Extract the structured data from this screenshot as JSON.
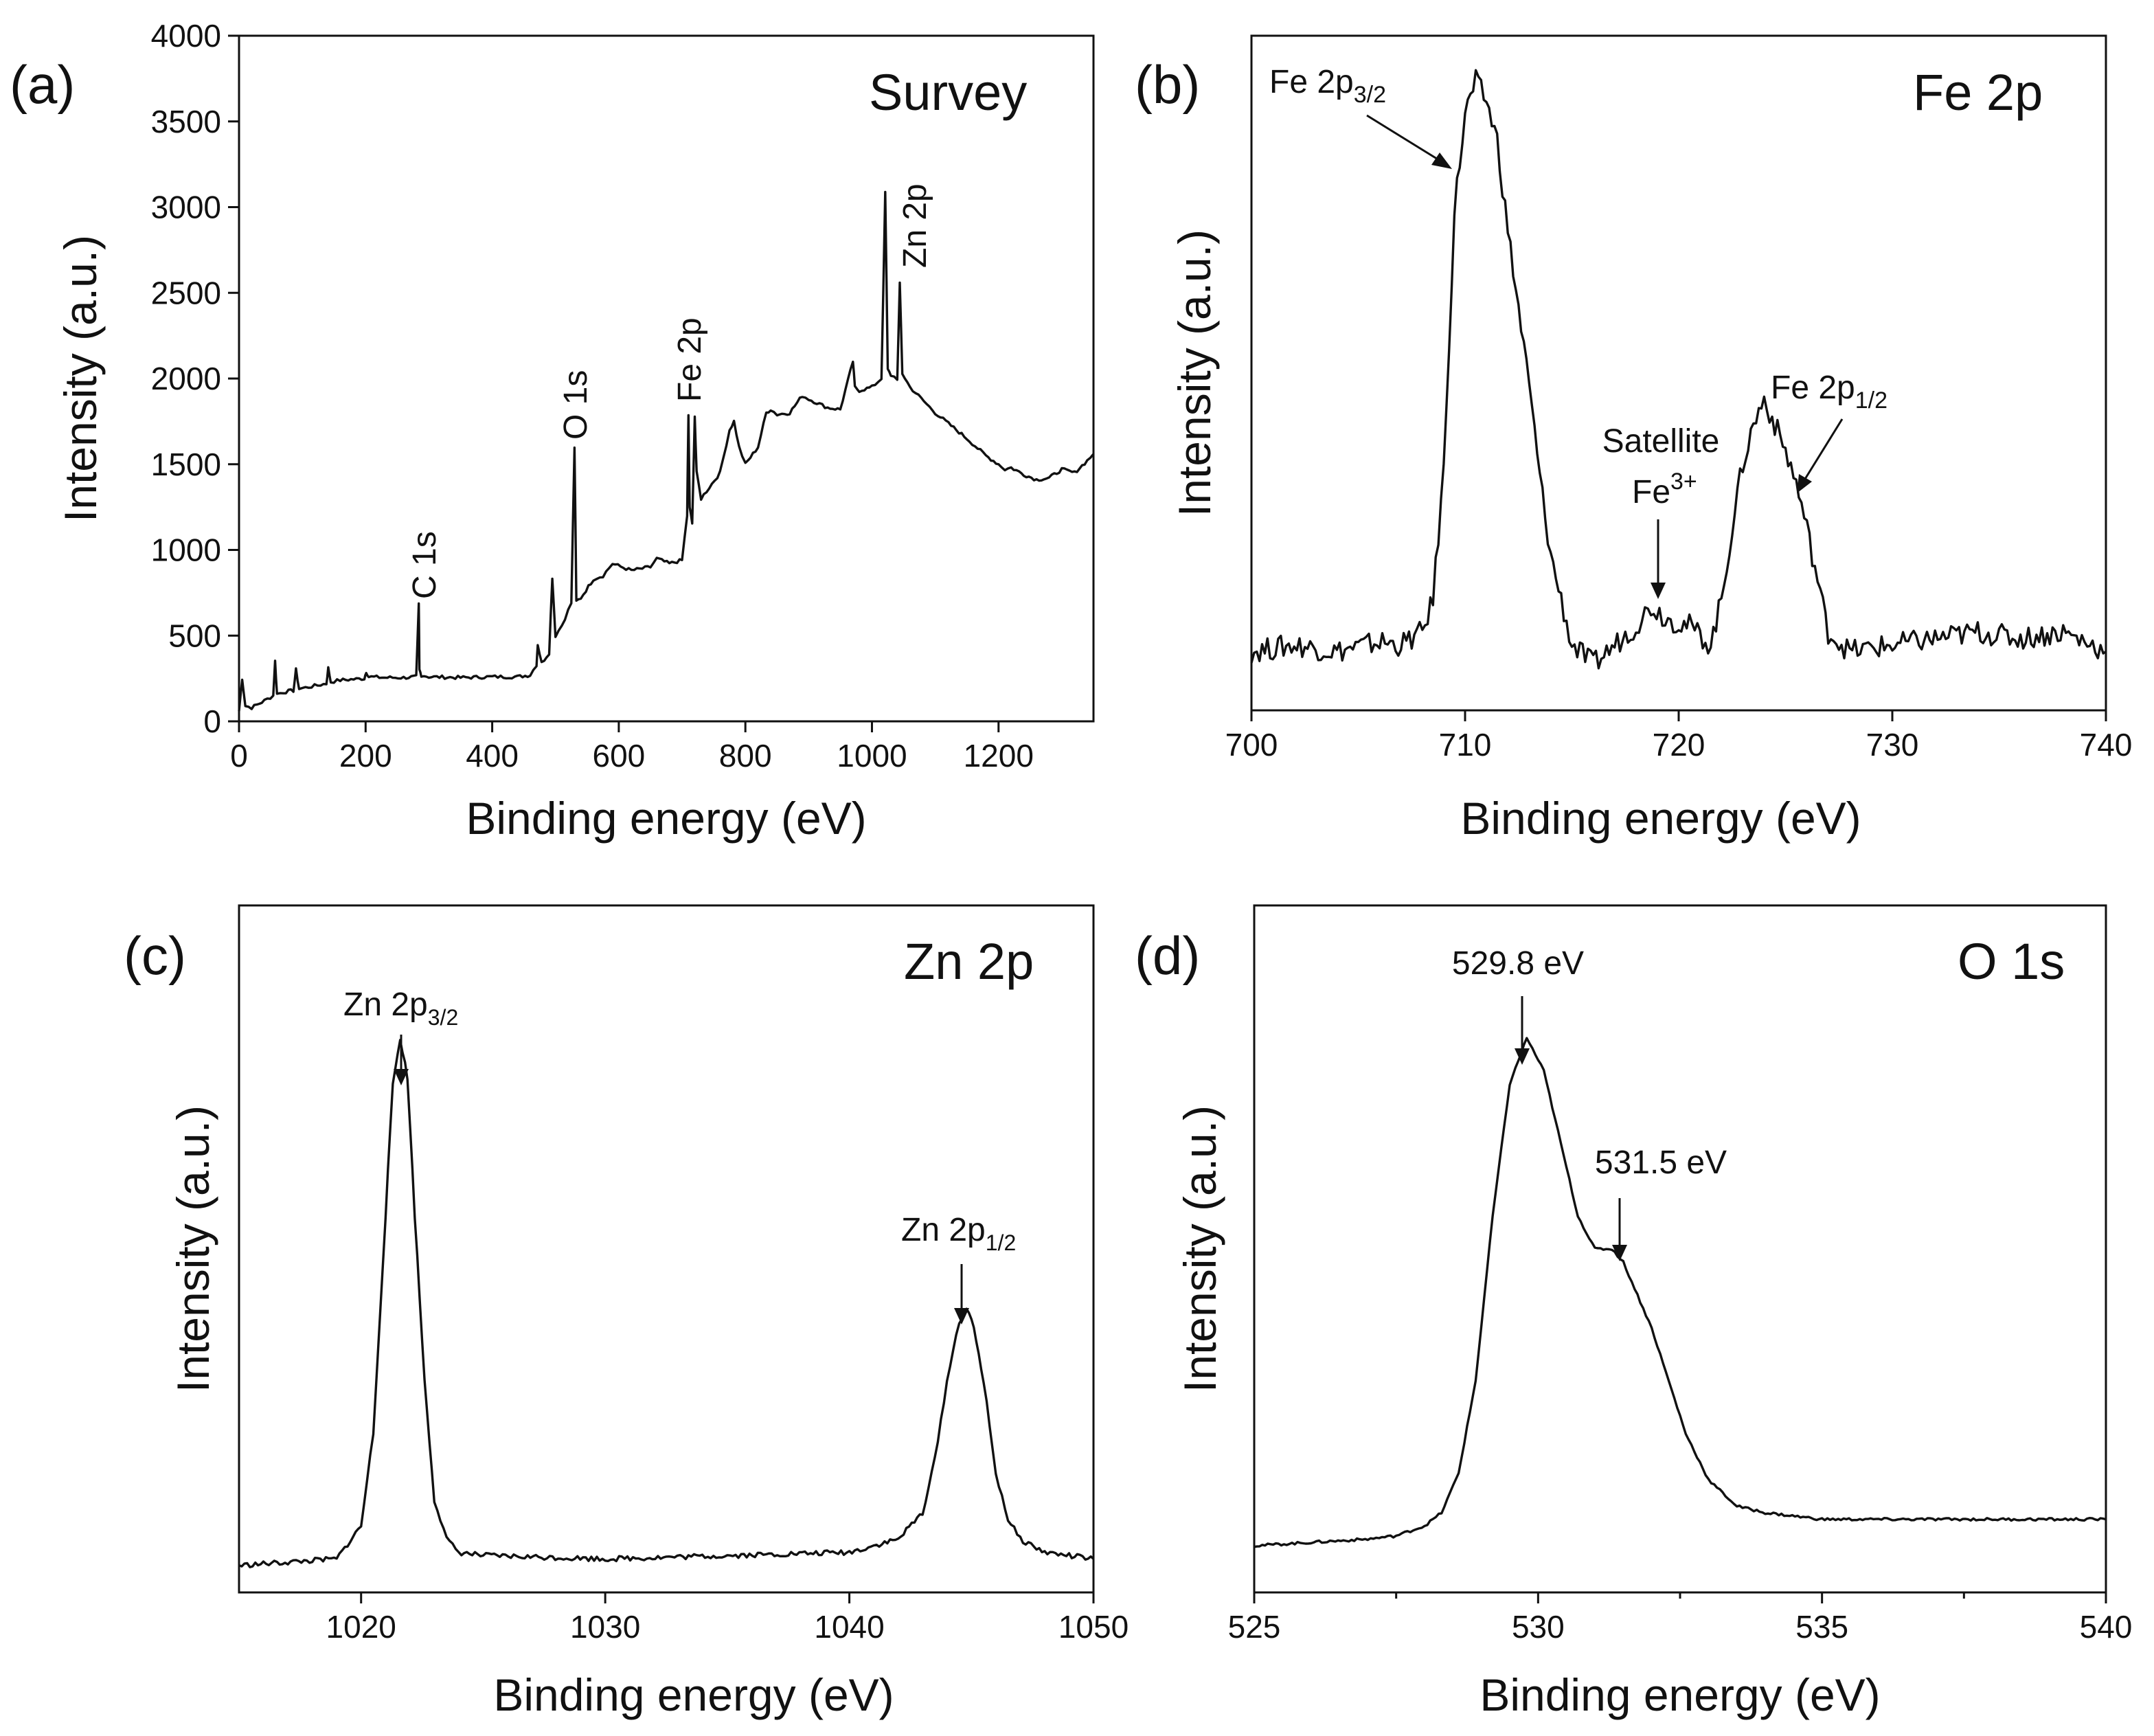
{
  "chart_data": [
    {
      "id": "a",
      "type": "line",
      "panel_label": "(a)",
      "title": "Survey",
      "xlabel": "Binding energy (eV)",
      "ylabel": "Intensity (a.u.)",
      "xlim": [
        0,
        1350
      ],
      "ylim": [
        0,
        4000
      ],
      "x_ticks": [
        0,
        200,
        400,
        600,
        800,
        1000,
        1200
      ],
      "x_tick_labels": [
        "0",
        "200",
        "400",
        "600",
        "800",
        "1000",
        "1200"
      ],
      "y_ticks": [
        0,
        500,
        1000,
        1500,
        2000,
        2500,
        3000,
        3500,
        4000
      ],
      "y_tick_labels": [
        "0",
        "500",
        "1000",
        "1500",
        "2000",
        "2500",
        "3000",
        "3500",
        "4000"
      ],
      "series": [
        {
          "name": "Survey spectrum",
          "x": [
            0,
            5,
            10,
            20,
            40,
            54,
            57,
            60,
            70,
            86,
            90,
            95,
            110,
            138,
            141,
            145,
            160,
            198,
            201,
            205,
            230,
            260,
            280,
            284,
            285,
            288,
            300,
            350,
            400,
            440,
            460,
            470,
            472,
            478,
            490,
            495,
            500,
            510,
            525,
            530,
            533,
            540,
            560,
            575,
            590,
            620,
            650,
            660,
            680,
            700,
            708,
            710,
            712,
            716,
            720,
            723,
            730,
            760,
            775,
            782,
            790,
            800,
            820,
            833,
            840,
            850,
            870,
            890,
            900,
            930,
            950,
            970,
            973,
            980,
            1000,
            1015,
            1021,
            1025,
            1030,
            1040,
            1044,
            1048,
            1060,
            1100,
            1150,
            1180,
            1200,
            1210,
            1220,
            1240,
            1260,
            1280,
            1300,
            1320,
            1340,
            1350
          ],
          "y": [
            60,
            250,
            90,
            80,
            120,
            150,
            350,
            160,
            170,
            180,
            300,
            190,
            200,
            220,
            310,
            230,
            240,
            250,
            290,
            260,
            255,
            255,
            260,
            680,
            300,
            270,
            260,
            255,
            260,
            260,
            270,
            330,
            450,
            340,
            400,
            840,
            500,
            560,
            690,
            1600,
            700,
            720,
            830,
            850,
            920,
            880,
            900,
            950,
            920,
            940,
            1200,
            1780,
            1250,
            1150,
            1780,
            1450,
            1300,
            1450,
            1700,
            1750,
            1600,
            1500,
            1600,
            1800,
            1820,
            1790,
            1800,
            1900,
            1880,
            1830,
            1820,
            2100,
            1950,
            1930,
            1950,
            2000,
            3080,
            2050,
            2020,
            2000,
            2550,
            2030,
            1950,
            1800,
            1650,
            1550,
            1500,
            1470,
            1480,
            1440,
            1410,
            1420,
            1470,
            1450,
            1520,
            1560
          ]
        }
      ],
      "annotations": [
        {
          "text": "C 1s",
          "x": 285
        },
        {
          "text": "O 1s",
          "x": 531
        },
        {
          "text": "Fe 2p",
          "x": 711
        },
        {
          "text": "Zn 2p",
          "x": 1044
        }
      ]
    },
    {
      "id": "b",
      "type": "line",
      "panel_label": "(b)",
      "title": "Fe 2p",
      "xlabel": "Binding energy (eV)",
      "ylabel": "Intensity (a.u.)",
      "xlim": [
        700,
        740
      ],
      "ylim": [
        0,
        1
      ],
      "x_ticks": [
        700,
        710,
        720,
        730,
        740
      ],
      "x_tick_labels": [
        "700",
        "710",
        "720",
        "730",
        "740"
      ],
      "y_ticks": [],
      "series": [
        {
          "name": "Fe 2p spectrum",
          "x": [
            700,
            702,
            704,
            706,
            707,
            708,
            708.5,
            709,
            709.5,
            710,
            710.5,
            711,
            711.5,
            712,
            712.5,
            713,
            713.5,
            714,
            715,
            716,
            717,
            718,
            718.7,
            719.5,
            720.5,
            721.5,
            722,
            722.5,
            723,
            723.5,
            724,
            724.5,
            725,
            725.5,
            726,
            726.5,
            727,
            728,
            730,
            732,
            734,
            736,
            738,
            740
          ],
          "y": [
            0.07,
            0.08,
            0.07,
            0.085,
            0.08,
            0.1,
            0.15,
            0.35,
            0.75,
            0.9,
            0.95,
            0.92,
            0.86,
            0.72,
            0.6,
            0.48,
            0.34,
            0.22,
            0.08,
            0.05,
            0.08,
            0.11,
            0.14,
            0.12,
            0.11,
            0.08,
            0.15,
            0.26,
            0.36,
            0.42,
            0.46,
            0.42,
            0.38,
            0.33,
            0.26,
            0.18,
            0.1,
            0.07,
            0.08,
            0.09,
            0.1,
            0.09,
            0.1,
            0.07
          ]
        }
      ],
      "annotations": [
        {
          "text": "Fe 2p",
          "sub": "3/2",
          "x": 710.5
        },
        {
          "text": "Satellite",
          "x": 718.8
        },
        {
          "text": "Fe",
          "sup": "3+",
          "x": 718.8
        },
        {
          "text": "Fe 2p",
          "sub": "1/2",
          "x": 725
        }
      ]
    },
    {
      "id": "c",
      "type": "line",
      "panel_label": "(c)",
      "title": "Zn 2p",
      "xlabel": "Binding energy (eV)",
      "ylabel": "Intensity (a.u.)",
      "xlim": [
        1015,
        1050
      ],
      "ylim": [
        0,
        1
      ],
      "x_ticks": [
        1020,
        1030,
        1040,
        1050
      ],
      "x_tick_labels": [
        "1020",
        "1030",
        "1040",
        "1050"
      ],
      "y_ticks": [],
      "series": [
        {
          "name": "Zn 2p spectrum",
          "x": [
            1015,
            1017,
            1019,
            1020,
            1020.5,
            1021,
            1021.3,
            1021.6,
            1021.9,
            1022.2,
            1022.6,
            1023,
            1023.5,
            1024,
            1025,
            1030,
            1035,
            1040,
            1042,
            1043,
            1043.5,
            1044,
            1044.5,
            1044.8,
            1045.1,
            1045.5,
            1046,
            1046.5,
            1047,
            1048,
            1049,
            1050
          ],
          "y": [
            0.02,
            0.025,
            0.03,
            0.08,
            0.22,
            0.55,
            0.75,
            0.82,
            0.76,
            0.55,
            0.3,
            0.12,
            0.06,
            0.04,
            0.035,
            0.03,
            0.035,
            0.04,
            0.06,
            0.1,
            0.18,
            0.3,
            0.39,
            0.41,
            0.38,
            0.3,
            0.16,
            0.09,
            0.06,
            0.04,
            0.035,
            0.03
          ]
        }
      ],
      "annotations": [
        {
          "text": "Zn 2p",
          "sub": "3/2",
          "x": 1021.7
        },
        {
          "text": "Zn 2p",
          "sub": "1/2",
          "x": 1044.8
        }
      ]
    },
    {
      "id": "d",
      "type": "line",
      "panel_label": "(d)",
      "title": "O 1s",
      "xlabel": "Binding energy (eV)",
      "ylabel": "Intensity (a.u.)",
      "xlim": [
        525,
        540
      ],
      "ylim": [
        0,
        1
      ],
      "x_ticks": [
        525,
        530,
        535,
        540
      ],
      "x_tick_labels": [
        "525",
        "530",
        "535",
        "540"
      ],
      "x_minor_ticks": [
        527.5,
        532.5,
        537.5
      ],
      "y_ticks": [],
      "series": [
        {
          "name": "O 1s spectrum",
          "x": [
            525,
            526,
            527,
            527.5,
            528,
            528.3,
            528.6,
            528.9,
            529.2,
            529.5,
            529.8,
            530.1,
            530.4,
            530.7,
            531,
            531.3,
            531.5,
            531.7,
            532,
            532.3,
            532.6,
            533,
            533.5,
            534,
            535,
            536,
            537,
            538,
            539,
            540
          ],
          "y": [
            0.05,
            0.055,
            0.06,
            0.065,
            0.08,
            0.1,
            0.16,
            0.3,
            0.55,
            0.75,
            0.82,
            0.77,
            0.66,
            0.55,
            0.5,
            0.5,
            0.48,
            0.44,
            0.38,
            0.3,
            0.22,
            0.15,
            0.11,
            0.1,
            0.09,
            0.09,
            0.09,
            0.09,
            0.09,
            0.09
          ]
        }
      ],
      "annotations": [
        {
          "text": "529.8 eV",
          "x": 529.8
        },
        {
          "text": "531.5 eV",
          "x": 531.5
        }
      ]
    }
  ]
}
